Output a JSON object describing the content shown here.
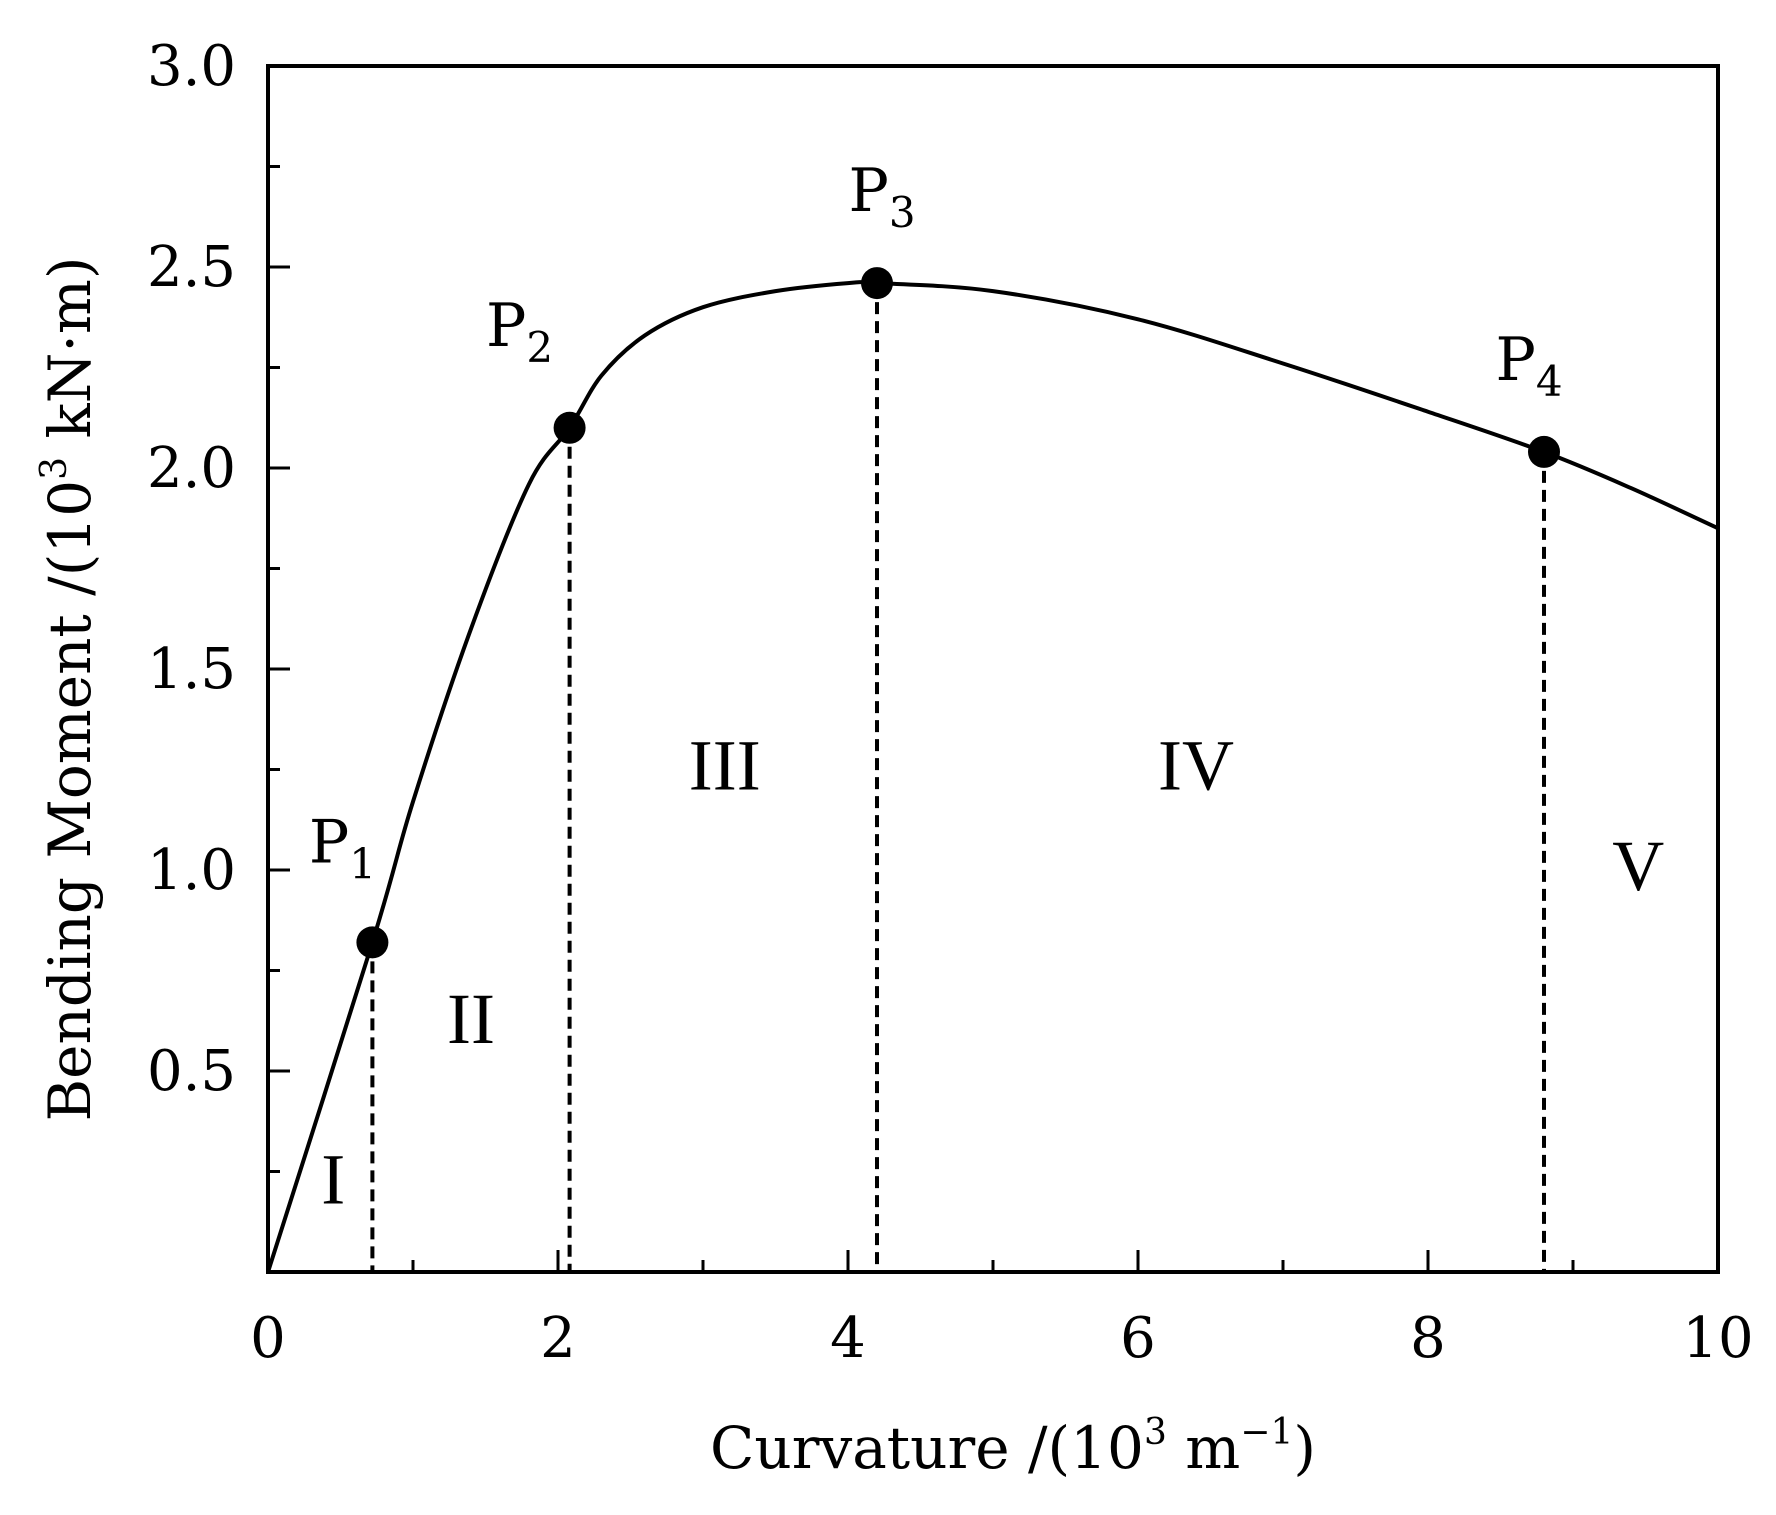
{
  "chart_data": {
    "type": "line",
    "xlabel": {
      "text": "Curvature  /(10",
      "sup": "3",
      "after": " m",
      "sup2": "−1",
      "end": ")"
    },
    "ylabel": {
      "text": "Bending Moment /(10",
      "sup": "3",
      "after": " kN·m)"
    },
    "xlim": [
      0,
      10
    ],
    "ylim": [
      0,
      3.0
    ],
    "xticks": [
      0,
      2,
      4,
      6,
      8,
      10
    ],
    "xtick_labels": [
      "0",
      "2",
      "4",
      "6",
      "8",
      "10"
    ],
    "xminor": [
      1,
      3,
      5,
      7,
      9
    ],
    "yticks": [
      0.5,
      1.0,
      1.5,
      2.0,
      2.5,
      3.0
    ],
    "ytick_labels": [
      "0.5",
      "1.0",
      "1.5",
      "2.0",
      "2.5",
      "3.0"
    ],
    "yminor": [
      0.25,
      0.75,
      1.25,
      1.75,
      2.25,
      2.75
    ],
    "grid": false,
    "series": [
      {
        "x": [
          0,
          0.72,
          1.0,
          1.4,
          1.8,
          2.08,
          2.3,
          2.6,
          3.0,
          3.5,
          4.0,
          4.2,
          5.0,
          6.0,
          7.0,
          8.0,
          8.8,
          9.4,
          10.0
        ],
        "y": [
          0,
          0.82,
          1.17,
          1.6,
          1.96,
          2.1,
          2.23,
          2.33,
          2.4,
          2.44,
          2.46,
          2.46,
          2.44,
          2.37,
          2.26,
          2.14,
          2.04,
          1.95,
          1.85
        ]
      }
    ],
    "points": [
      {
        "name": "P",
        "sub": "1",
        "x": 0.72,
        "y": 0.82
      },
      {
        "name": "P",
        "sub": "2",
        "x": 2.08,
        "y": 2.1
      },
      {
        "name": "P",
        "sub": "3",
        "x": 4.2,
        "y": 2.46
      },
      {
        "name": "P",
        "sub": "4",
        "x": 8.8,
        "y": 2.04
      }
    ],
    "regions": [
      {
        "label": "I",
        "x": 0.45,
        "y": 0.17
      },
      {
        "label": "II",
        "x": 1.4,
        "y": 0.57
      },
      {
        "label": "III",
        "x": 3.15,
        "y": 1.2
      },
      {
        "label": "IV",
        "x": 6.4,
        "y": 1.2
      },
      {
        "label": "V",
        "x": 9.45,
        "y": 0.95
      }
    ],
    "colors": {
      "line": "#000000",
      "background": "#ffffff"
    }
  }
}
